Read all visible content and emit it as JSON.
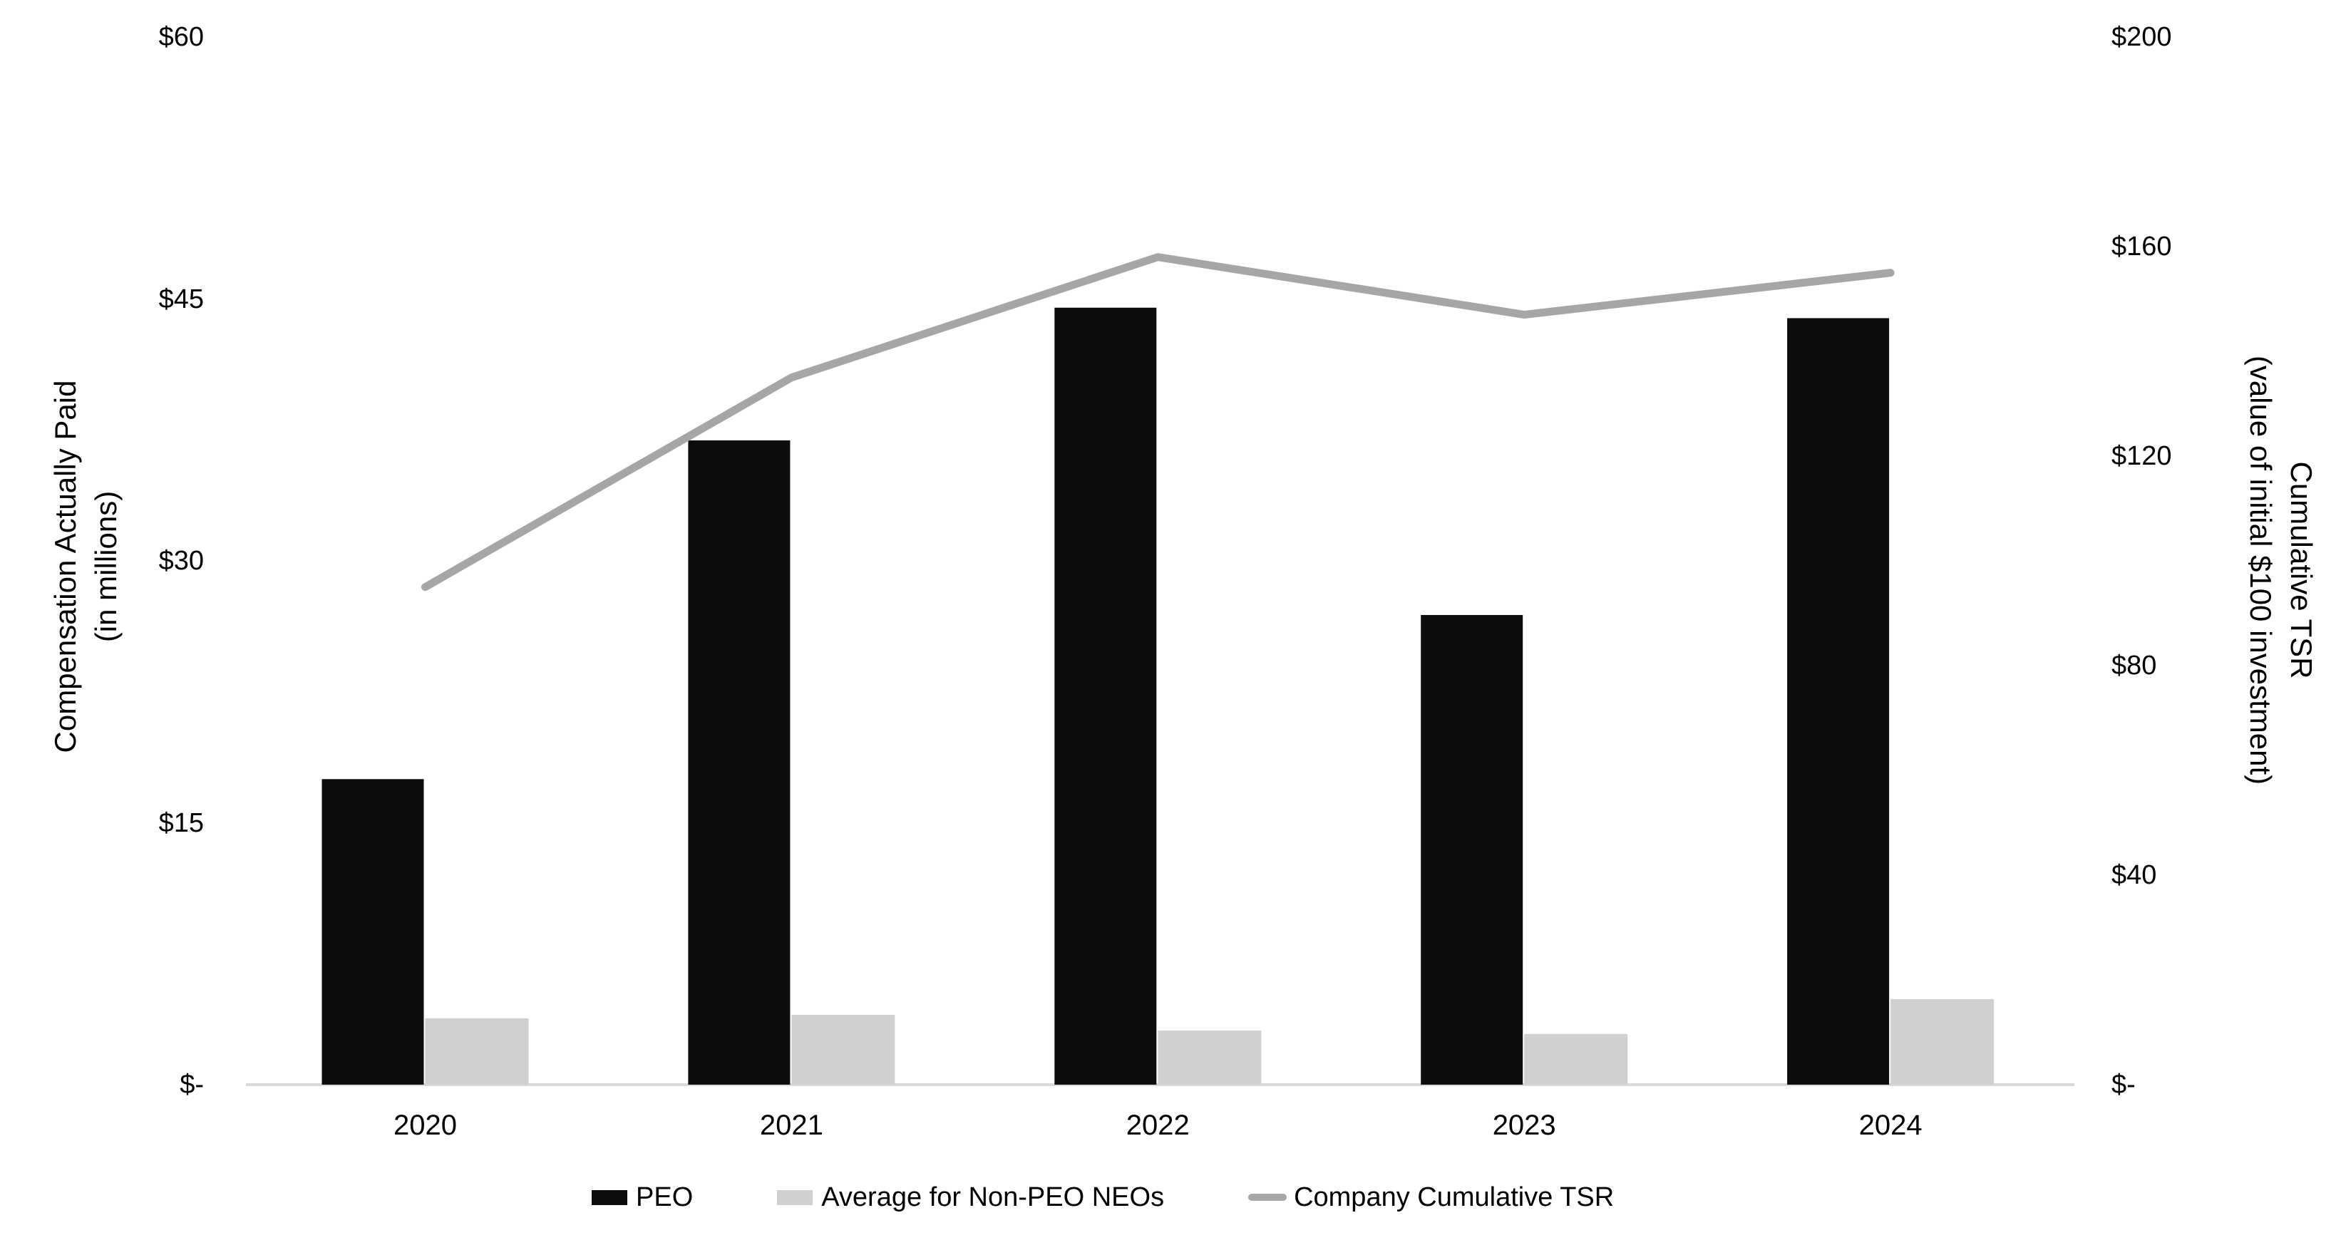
{
  "chart_data": {
    "type": "combo",
    "categories": [
      "2020",
      "2021",
      "2022",
      "2023",
      "2024"
    ],
    "series": [
      {
        "name": "PEO",
        "type": "bar",
        "axis": "left",
        "values": [
          17.5,
          36.9,
          44.5,
          26.9,
          43.9
        ],
        "color": "#0d0d0d"
      },
      {
        "name": "Average for Non-PEO NEOs",
        "type": "bar",
        "axis": "left",
        "values": [
          3.8,
          4.0,
          3.1,
          2.9,
          4.9
        ],
        "color": "#d1cfcf"
      },
      {
        "name": "Company Cumulative TSR",
        "type": "line",
        "axis": "right",
        "values": [
          95,
          135,
          158,
          147,
          155
        ],
        "color": "#a6a6a6"
      }
    ],
    "left_axis": {
      "title_line1": "Compensation Actually Paid",
      "title_line2": "(in millions)",
      "range": [
        0,
        60
      ],
      "ticks": [
        {
          "label": "$-",
          "value": 0
        },
        {
          "label": "$15",
          "value": 15
        },
        {
          "label": "$30",
          "value": 30
        },
        {
          "label": "$45",
          "value": 45
        },
        {
          "label": "$60",
          "value": 60
        }
      ]
    },
    "right_axis": {
      "title_line1": "Cumulative TSR",
      "title_line2": "(value of initial $100 investment)",
      "range": [
        0,
        200
      ],
      "ticks": [
        {
          "label": "$-",
          "value": 0
        },
        {
          "label": "$40",
          "value": 40
        },
        {
          "label": "$80",
          "value": 80
        },
        {
          "label": "$120",
          "value": 120
        },
        {
          "label": "$160",
          "value": 160
        },
        {
          "label": "$200",
          "value": 200
        }
      ]
    },
    "legend": {
      "position": "bottom",
      "items": [
        {
          "swatch": "bar"
        },
        {
          "swatch": "bar"
        },
        {
          "swatch": "line"
        }
      ]
    },
    "grid": "off",
    "axis_line_color": "#d9d9d9",
    "background": "#ffffff"
  }
}
